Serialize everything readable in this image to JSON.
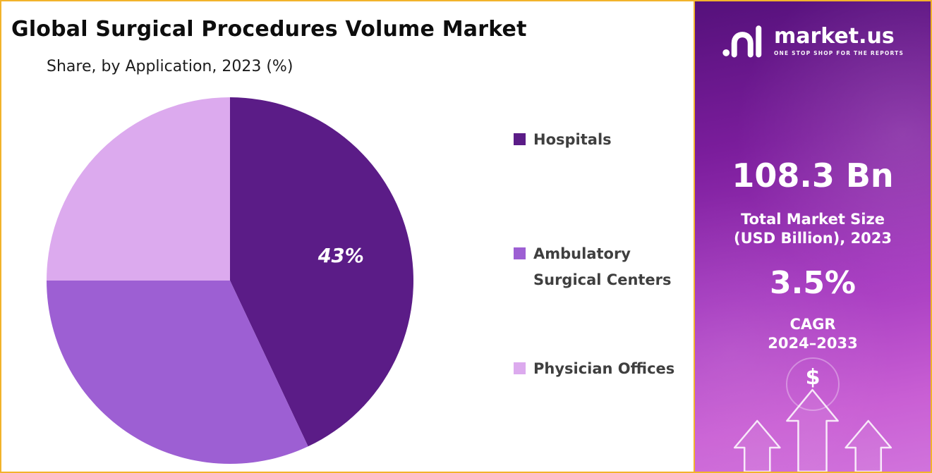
{
  "header": {
    "title": "Global Surgical Procedures Volume Market",
    "subtitle": "Share, by Application, 2023 (%)"
  },
  "chart_data": {
    "type": "pie",
    "title": "Global Surgical Procedures Volume Market Share, by Application, 2023 (%)",
    "unit": "%",
    "year": "2023",
    "start_angle_deg": 0,
    "direction": "clockwise",
    "legend_position": "right",
    "slices": [
      {
        "label": "Hospitals",
        "value": 43,
        "data_label": "43%",
        "color": "#5B1C87"
      },
      {
        "label": "Ambulatory Surgical Centers",
        "value": 32,
        "data_label": "",
        "color": "#9D5FD3"
      },
      {
        "label": "Physician Offices",
        "value": 25,
        "data_label": "",
        "color": "#DCAAEE"
      }
    ]
  },
  "side_panel": {
    "logo": {
      "brand": "market.us",
      "tagline": "ONE STOP SHOP FOR THE REPORTS"
    },
    "market_size_value": "108.3 Bn",
    "market_size_label_line1": "Total Market Size",
    "market_size_label_line2": "(USD Billion), 2023",
    "cagr_value": "3.5%",
    "cagr_label_line1": "CAGR",
    "cagr_label_line2": "2024–2033",
    "dollar_symbol": "$"
  },
  "colors": {
    "slice_hospitals": "#5B1C87",
    "slice_ambulatory": "#9D5FD3",
    "slice_physician": "#DCAAEE",
    "panel_gradient_top": "#55117B",
    "panel_gradient_bottom": "#D173DC",
    "frame_border": "#F2B32B",
    "data_label_text": "#FFFFFF",
    "legend_text": "#3F3F3F"
  }
}
